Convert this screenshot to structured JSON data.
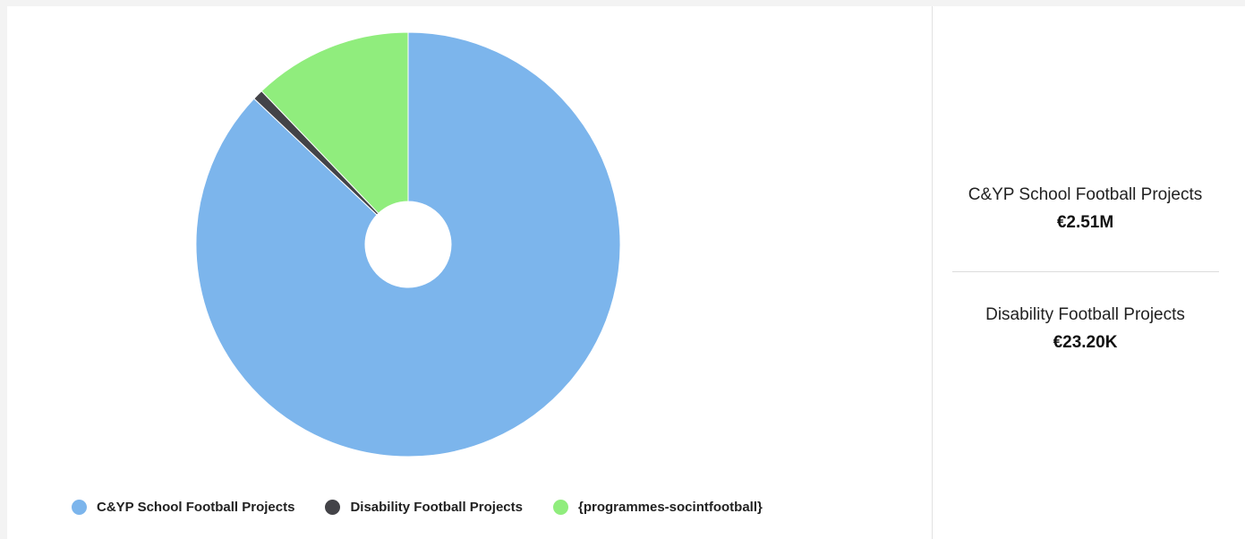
{
  "chart_data": {
    "type": "pie",
    "donut": true,
    "categories": [
      "C&YP School Football Projects",
      "Disability Football Projects",
      "{programmes-socintfootball}"
    ],
    "values": [
      2510000,
      23200,
      350000
    ],
    "colors": [
      "#7cb5ec",
      "#434348",
      "#90ed7d"
    ],
    "legend_position": "bottom-left",
    "title": ""
  },
  "legend": {
    "items": [
      {
        "label": "C&YP School Football Projects",
        "color": "#7cb5ec"
      },
      {
        "label": "Disability Football Projects",
        "color": "#434348"
      },
      {
        "label": "{programmes-socintfootball}",
        "color": "#90ed7d"
      }
    ]
  },
  "summary": {
    "items": [
      {
        "label": "C&YP School Football Projects",
        "value": "€2.51M"
      },
      {
        "label": "Disability Football Projects",
        "value": "€23.20K"
      }
    ]
  }
}
